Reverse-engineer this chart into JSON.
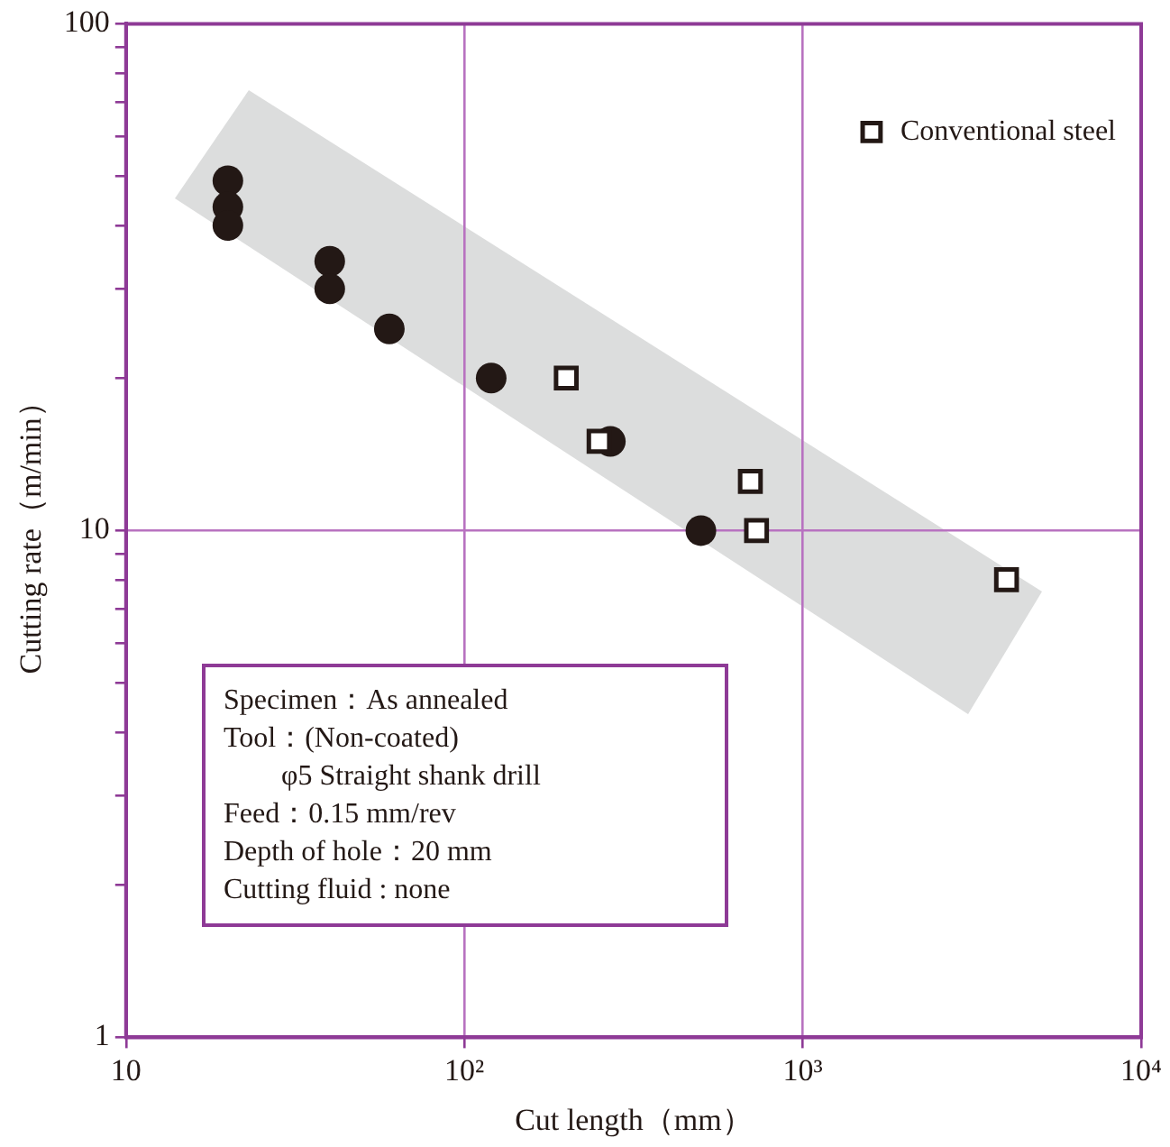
{
  "chart_data": {
    "type": "scatter",
    "xlabel": "Cut length（mm）",
    "ylabel": "Cutting rate（m/min）",
    "log": "xy",
    "xlim": [
      10,
      10000
    ],
    "ylim": [
      1,
      100
    ],
    "xticks": [
      10,
      {
        "value": 100,
        "label": "10²"
      },
      {
        "value": 1000,
        "label": "10³"
      },
      {
        "value": 10000,
        "label": "10⁴"
      }
    ],
    "yticks": [
      1,
      {
        "value": 2,
        "label": null
      },
      {
        "value": 3,
        "label": null
      },
      {
        "value": 4,
        "label": null
      },
      {
        "value": 5,
        "label": null
      },
      {
        "value": 6,
        "label": null
      },
      {
        "value": 7,
        "label": null
      },
      {
        "value": 8,
        "label": null
      },
      {
        "value": 9,
        "label": null
      },
      10,
      {
        "value": 20,
        "label": null
      },
      {
        "value": 30,
        "label": null
      },
      {
        "value": 40,
        "label": null
      },
      {
        "value": 50,
        "label": null
      },
      {
        "value": 60,
        "label": null
      },
      {
        "value": 70,
        "label": null
      },
      {
        "value": 80,
        "label": null
      },
      {
        "value": 90,
        "label": null
      },
      100
    ],
    "grid": true,
    "legend": "top right",
    "series": [
      {
        "color": "#231815",
        "marker": "circle",
        "x": [
          20,
          20,
          20,
          40,
          40,
          60,
          120,
          270,
          500
        ],
        "values": [
          49,
          43.5,
          40,
          34,
          30,
          25,
          20,
          15,
          10
        ]
      },
      {
        "name": "Conventional steel",
        "color": "#231815",
        "marker": "square",
        "x": [
          200,
          250,
          700,
          730,
          4000
        ],
        "values": [
          20,
          15,
          12.5,
          10,
          8
        ]
      }
    ],
    "annotations": [
      "Specimen：As annealed\nTool：(Non-coated)\n        φ5 Straight shank drill\nFeed：0.15 mm/rev\nDepth of hole：20 mm\nCutting fluid : none"
    ]
  }
}
